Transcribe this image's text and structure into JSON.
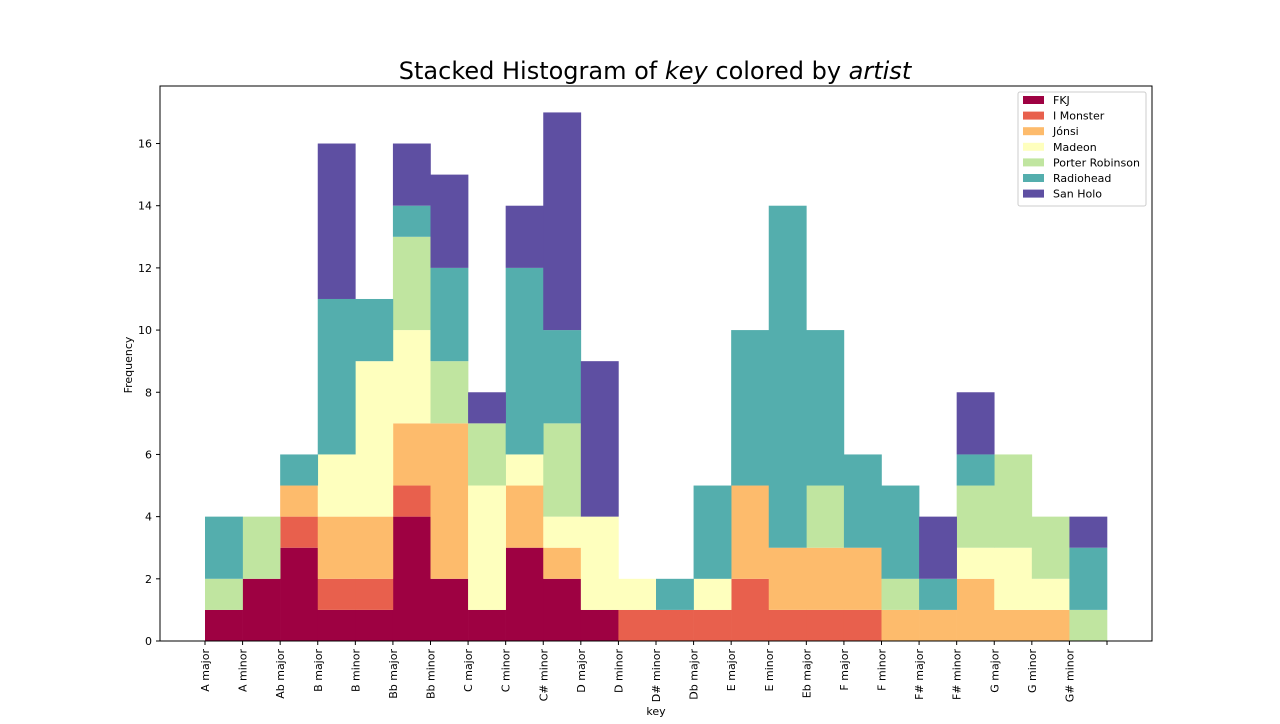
{
  "chart_data": {
    "type": "bar",
    "stacked": true,
    "title_parts": [
      {
        "text": "Stacked Histogram of ",
        "italic": false
      },
      {
        "text": "key",
        "italic": true
      },
      {
        "text": " colored by ",
        "italic": false
      },
      {
        "text": "artist",
        "italic": true
      }
    ],
    "xlabel": "key",
    "ylabel": "Frequency",
    "ylim": [
      0,
      17.85
    ],
    "yticks": [
      0,
      2,
      4,
      6,
      8,
      10,
      12,
      14,
      16
    ],
    "legend_position": "top-right",
    "categories": [
      "A major",
      "A minor",
      "Ab major",
      "B major",
      "B minor",
      "Bb major",
      "Bb minor",
      "C major",
      "C minor",
      "C# minor",
      "D major",
      "D minor",
      "D# minor",
      "Db major",
      "E major",
      "E minor",
      "Eb major",
      "F major",
      "F minor",
      "F# major",
      "F# minor",
      "G major",
      "G minor",
      "G# minor"
    ],
    "series": [
      {
        "name": "FKJ",
        "color": "#9e0142",
        "values": [
          1,
          2,
          3,
          1,
          1,
          4,
          2,
          1,
          3,
          2,
          1,
          0,
          0,
          0,
          0,
          0,
          0,
          0,
          0,
          0,
          0,
          0,
          0,
          0
        ]
      },
      {
        "name": "I Monster",
        "color": "#e8604d",
        "values": [
          0,
          0,
          1,
          1,
          1,
          1,
          0,
          0,
          0,
          0,
          0,
          1,
          1,
          1,
          2,
          1,
          1,
          1,
          0,
          0,
          0,
          0,
          0,
          0
        ]
      },
      {
        "name": "Jónsi",
        "color": "#fdbb6c",
        "values": [
          0,
          0,
          1,
          2,
          2,
          2,
          5,
          0,
          2,
          1,
          0,
          0,
          0,
          0,
          3,
          2,
          2,
          2,
          1,
          1,
          2,
          1,
          1,
          0
        ]
      },
      {
        "name": "Madeon",
        "color": "#feffbe",
        "values": [
          0,
          0,
          0,
          2,
          5,
          3,
          0,
          4,
          1,
          1,
          3,
          1,
          0,
          1,
          0,
          0,
          0,
          0,
          0,
          0,
          1,
          2,
          1,
          0
        ]
      },
      {
        "name": "Porter Robinson",
        "color": "#c0e5a0",
        "values": [
          1,
          2,
          0,
          0,
          0,
          3,
          2,
          2,
          0,
          3,
          0,
          0,
          0,
          0,
          0,
          0,
          2,
          0,
          1,
          0,
          2,
          3,
          2,
          1
        ]
      },
      {
        "name": "Radiohead",
        "color": "#54aead",
        "values": [
          2,
          0,
          1,
          5,
          2,
          1,
          3,
          0,
          6,
          3,
          0,
          0,
          1,
          3,
          5,
          11,
          5,
          3,
          3,
          1,
          1,
          0,
          0,
          2
        ]
      },
      {
        "name": "San Holo",
        "color": "#5e4fa2",
        "values": [
          0,
          0,
          0,
          5,
          0,
          2,
          3,
          1,
          2,
          7,
          5,
          0,
          0,
          0,
          0,
          0,
          0,
          0,
          0,
          2,
          2,
          0,
          0,
          1
        ]
      }
    ]
  }
}
